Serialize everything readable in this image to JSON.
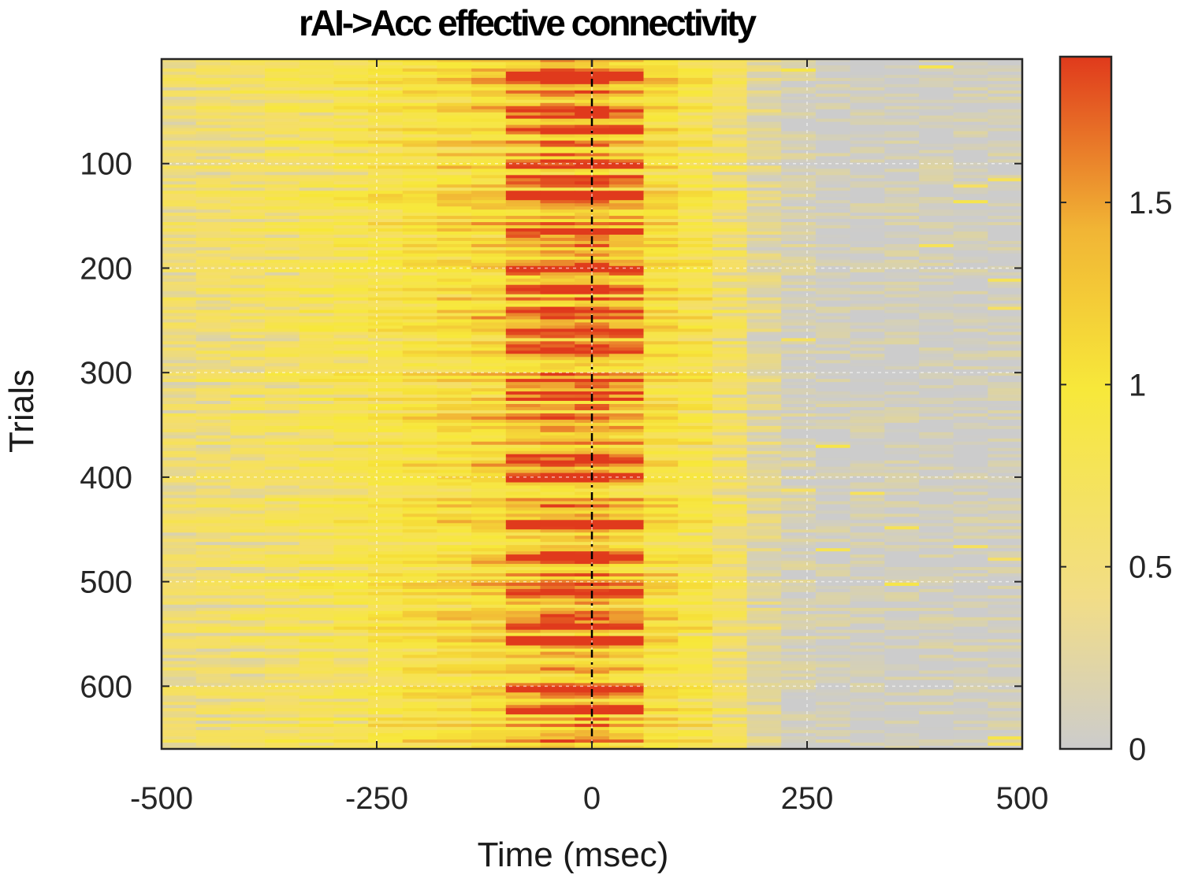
{
  "chart_data": {
    "type": "heatmap",
    "title": "rAI->Acc effective connectivity",
    "xlabel": "Time (msec)",
    "ylabel": "Trials",
    "xlim": [
      -500,
      500
    ],
    "ylim": [
      660,
      0
    ],
    "x_ticks": [
      -500,
      -250,
      0,
      250,
      500
    ],
    "x_tick_labels": [
      "-500",
      "-250",
      "0",
      "250",
      "500"
    ],
    "y_ticks": [
      100,
      200,
      300,
      400,
      500,
      600
    ],
    "y_tick_labels": [
      "100",
      "200",
      "300",
      "400",
      "500",
      "600"
    ],
    "grid": true,
    "event_line_x": 0,
    "colorbar": {
      "range": [
        0,
        1.9
      ],
      "ticks": [
        0,
        0.5,
        1,
        1.5
      ],
      "tick_labels": [
        "0",
        "0.5",
        "1",
        "1.5"
      ],
      "colormap": [
        "#cccccc",
        "#f5de6a",
        "#f7e83a",
        "#f1b535",
        "#e03a1c"
      ]
    },
    "time_bins": [
      -480,
      -440,
      -400,
      -360,
      -320,
      -280,
      -240,
      -200,
      -160,
      -120,
      -80,
      -40,
      0,
      40,
      80,
      120,
      160,
      200,
      240,
      280,
      320,
      360,
      400,
      440,
      480
    ],
    "high_connectivity_trials": [
      15,
      50,
      65,
      100,
      115,
      130,
      165,
      200,
      220,
      240,
      260,
      275,
      310,
      320,
      380,
      400,
      445,
      475,
      510,
      540,
      555,
      600,
      620
    ],
    "peak_window_ms": [
      -100,
      60
    ],
    "summary_profile": [
      0.45,
      0.5,
      0.55,
      0.6,
      0.7,
      0.75,
      0.85,
      0.95,
      1.05,
      1.15,
      1.3,
      1.45,
      1.45,
      1.3,
      1.05,
      0.85,
      0.55,
      0.25,
      0.1,
      0.05,
      0.04,
      0.04,
      0.04,
      0.04,
      0.05
    ]
  }
}
